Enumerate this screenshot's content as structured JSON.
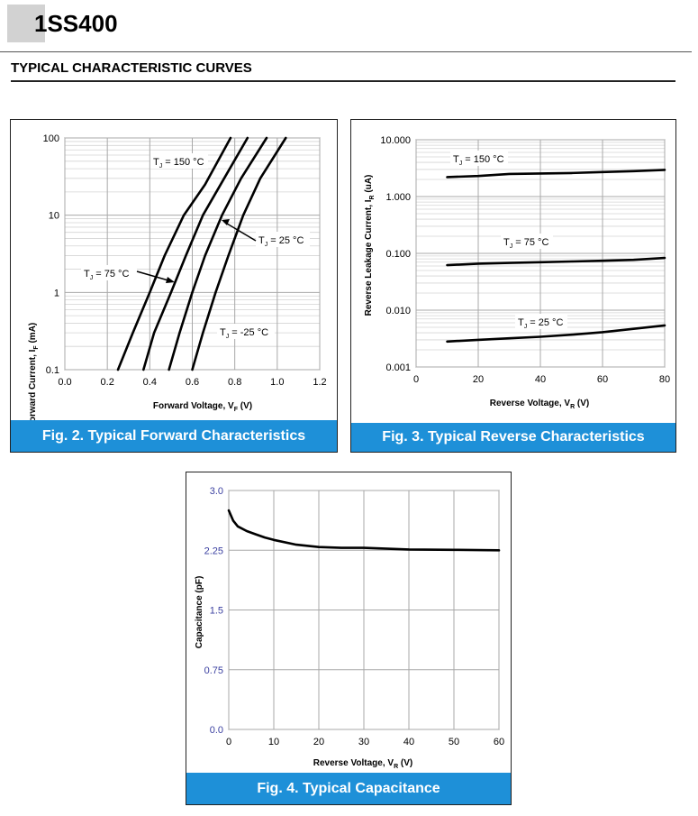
{
  "header": {
    "part_number": "1SS400",
    "section_title": "TYPICAL CHARACTERISTIC CURVES"
  },
  "figures": {
    "fig2": {
      "caption": "Fig. 2.  Typical Forward Characteristics",
      "ylabel": "Forward Current, I",
      "ylabel_sub": "F",
      "ylabel_unit": " (mA)",
      "xlabel": "Forward Voltage, V",
      "xlabel_sub": "F",
      "xlabel_unit": " (V)",
      "annotations": [
        {
          "main": "T",
          "sub": "J",
          "rest": " = 150 °C"
        },
        {
          "main": "T",
          "sub": "J",
          "rest": " = 25 °C"
        },
        {
          "main": "T",
          "sub": "J",
          "rest": " = 75 °C"
        },
        {
          "main": "T",
          "sub": "J",
          "rest": " = -25 °C"
        }
      ]
    },
    "fig3": {
      "caption": "Fig. 3.  Typical Reverse Characteristics",
      "ylabel": "Reverse Leakage Current, I",
      "ylabel_sub": "R",
      "ylabel_unit": " (uA)",
      "xlabel": "Reverse Voltage, V",
      "xlabel_sub": "R",
      "xlabel_unit": " (V)",
      "annotations": [
        {
          "main": "T",
          "sub": "J",
          "rest": " = 150 °C"
        },
        {
          "main": "T",
          "sub": "J",
          "rest": " = 75 °C"
        },
        {
          "main": "T",
          "sub": "J",
          "rest": " = 25 °C"
        }
      ]
    },
    "fig4": {
      "caption": "Fig. 4.  Typical Capacitance",
      "ylabel": "Capacitance (pF)",
      "xlabel": "Reverse Voltage, V",
      "xlabel_sub": "R",
      "xlabel_unit": " (V)"
    }
  },
  "chart_data": [
    {
      "type": "line",
      "title": "Typical Forward Characteristics",
      "xlabel": "Forward Voltage, VF (V)",
      "ylabel": "Forward Current, IF (mA)",
      "xlim": [
        0,
        1.2
      ],
      "ylim": [
        0.1,
        100
      ],
      "yscale": "log",
      "x_ticks": [
        "0.0",
        "0.2",
        "0.4",
        "0.6",
        "0.8",
        "1.0",
        "1.2"
      ],
      "y_ticks": [
        "0.1",
        "1",
        "10",
        "100"
      ],
      "series": [
        {
          "name": "TJ = 150 °C",
          "x": [
            0.25,
            0.32,
            0.4,
            0.47,
            0.56,
            0.66,
            0.78
          ],
          "y": [
            0.1,
            0.3,
            1,
            3,
            10,
            25,
            100
          ]
        },
        {
          "name": "TJ = 75 °C",
          "x": [
            0.37,
            0.42,
            0.5,
            0.57,
            0.65,
            0.75,
            0.86
          ],
          "y": [
            0.1,
            0.3,
            1,
            3,
            10,
            30,
            100
          ]
        },
        {
          "name": "TJ = 25 °C",
          "x": [
            0.49,
            0.54,
            0.6,
            0.66,
            0.74,
            0.83,
            0.95
          ],
          "y": [
            0.1,
            0.3,
            1,
            3,
            10,
            30,
            100
          ]
        },
        {
          "name": "TJ = -25 °C",
          "x": [
            0.6,
            0.65,
            0.71,
            0.77,
            0.84,
            0.92,
            1.04
          ],
          "y": [
            0.1,
            0.3,
            1,
            3,
            10,
            30,
            100
          ]
        }
      ]
    },
    {
      "type": "line",
      "title": "Typical Reverse Characteristics",
      "xlabel": "Reverse Voltage, VR (V)",
      "ylabel": "Reverse Leakage Current, IR (uA)",
      "xlim": [
        0,
        80
      ],
      "ylim": [
        0.001,
        10
      ],
      "yscale": "log",
      "x_ticks": [
        "0",
        "20",
        "40",
        "60",
        "80"
      ],
      "y_ticks": [
        "0.001",
        "0.010",
        "0.100",
        "1.000",
        "10.000"
      ],
      "series": [
        {
          "name": "TJ = 150 °C",
          "x": [
            10,
            20,
            30,
            40,
            50,
            60,
            70,
            80
          ],
          "y": [
            2.2,
            2.3,
            2.5,
            2.55,
            2.6,
            2.7,
            2.8,
            2.95
          ]
        },
        {
          "name": "TJ = 75 °C",
          "x": [
            10,
            20,
            30,
            40,
            50,
            60,
            70,
            80
          ],
          "y": [
            0.062,
            0.066,
            0.068,
            0.07,
            0.072,
            0.074,
            0.077,
            0.083
          ]
        },
        {
          "name": "TJ = 25 °C",
          "x": [
            10,
            20,
            30,
            40,
            50,
            60,
            70,
            80
          ],
          "y": [
            0.0028,
            0.003,
            0.0032,
            0.0034,
            0.0037,
            0.0041,
            0.0047,
            0.0054
          ]
        }
      ]
    },
    {
      "type": "line",
      "title": "Typical Capacitance",
      "xlabel": "Reverse Voltage, VR (V)",
      "ylabel": "Capacitance (pF)",
      "xlim": [
        0,
        60
      ],
      "ylim": [
        0,
        3.0
      ],
      "x_ticks": [
        "0",
        "10",
        "20",
        "30",
        "40",
        "50",
        "60"
      ],
      "y_ticks": [
        "0.0",
        "0.75",
        "1.5",
        "2.25",
        "3.0"
      ],
      "series": [
        {
          "name": "Capacitance",
          "x": [
            0,
            1,
            2,
            4,
            6,
            8,
            10,
            15,
            20,
            25,
            30,
            40,
            50,
            60
          ],
          "y": [
            2.75,
            2.62,
            2.55,
            2.49,
            2.45,
            2.41,
            2.38,
            2.32,
            2.29,
            2.28,
            2.28,
            2.26,
            2.255,
            2.25
          ]
        }
      ]
    }
  ]
}
